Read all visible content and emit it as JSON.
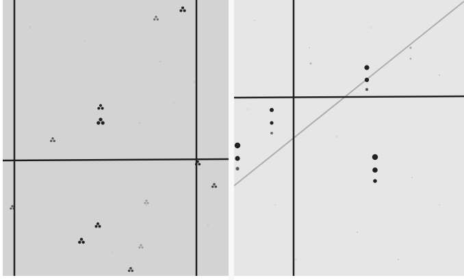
{
  "panels": [
    {
      "id": "left",
      "background": "#d3d3d3",
      "marker": "trefoil-dots"
    },
    {
      "id": "right",
      "background": "#e6e6e6",
      "marker": "dot-triplet"
    }
  ],
  "colors": {
    "line": "#1f1f1f",
    "dot": "#202020",
    "diagonal": "#9a9a9a"
  }
}
